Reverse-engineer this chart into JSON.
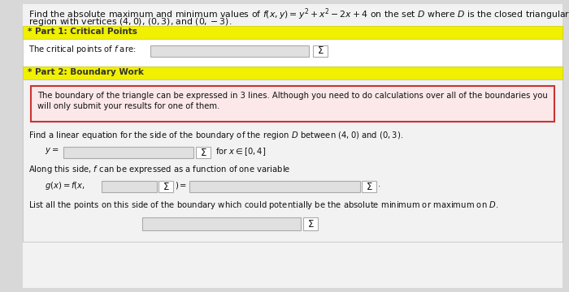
{
  "title_line1": "Find the absolute maximum and minimum values of $f(x, y) = y^2 + x^2 - 2x + 4$ on the set $D$ where $D$ is the closed triangular",
  "title_line2": "region with vertices $(4, 0)$, $(0, 3)$, and $(0, -3)$.",
  "part1_label": "* Part 1: Critical Points",
  "part1_bg": "#f0f000",
  "critical_text": "The critical points of $f$ are:",
  "part2_label": "* Part 2: Boundary Work",
  "part2_bg": "#f0f000",
  "info_line1": "The boundary of the triangle can be expressed in 3 lines. Although you need to do calculations over all of the boundaries you",
  "info_line2": "will only submit your results for one of them.",
  "info_border": "#cc3333",
  "info_bg": "#fce8e8",
  "linear_text": "Find a linear equation for the side of the boundary of the region $D$ between $(4, 0)$ and $(0, 3)$.",
  "y_label": "$y =$",
  "for_x_label": "for $x \\in [0, 4]$",
  "along_text": "Along this side, $f$ can be expressed as a function of one variable",
  "gx_prefix": "$g(x) = f(x,$",
  "gx_equals": "$) =$",
  "gx_suffix": ".",
  "list_text": "List all the points on this side of the boundary which could potentially be the absolute minimum or maximum on $D$.",
  "sigma": "$\\Sigma$",
  "page_bg": "#d8d8d8",
  "content_bg": "#f2f2f2",
  "white": "#ffffff",
  "input_bg": "#e0e0e0",
  "input_border": "#aaaaaa",
  "section_bar_border": "#cccc00",
  "content_border": "#bbbbbb",
  "text_color": "#111111",
  "fs_title": 7.8,
  "fs_section": 7.5,
  "fs_body": 7.2,
  "fs_sigma": 8.5
}
